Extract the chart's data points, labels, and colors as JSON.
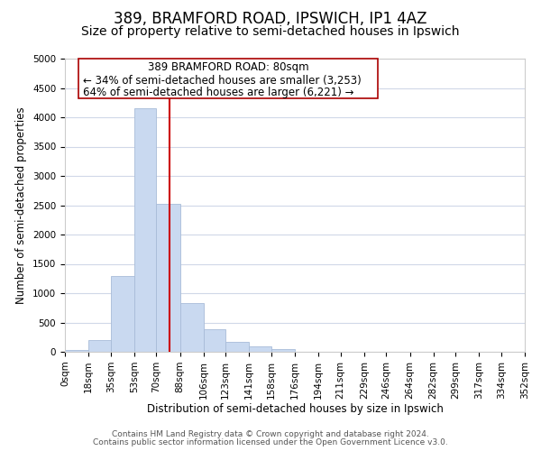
{
  "title": "389, BRAMFORD ROAD, IPSWICH, IP1 4AZ",
  "subtitle": "Size of property relative to semi-detached houses in Ipswich",
  "xlabel": "Distribution of semi-detached houses by size in Ipswich",
  "ylabel": "Number of semi-detached properties",
  "annotation_line1": "389 BRAMFORD ROAD: 80sqm",
  "annotation_line2": "← 34% of semi-detached houses are smaller (3,253)",
  "annotation_line3": "64% of semi-detached houses are larger (6,221) →",
  "footer_line1": "Contains HM Land Registry data © Crown copyright and database right 2024.",
  "footer_line2": "Contains public sector information licensed under the Open Government Licence v3.0.",
  "bin_edges": [
    0,
    18,
    35,
    53,
    70,
    88,
    106,
    123,
    141,
    158,
    176,
    194,
    211,
    229,
    246,
    264,
    282,
    299,
    317,
    334,
    352
  ],
  "bar_heights": [
    30,
    200,
    1300,
    4150,
    2530,
    830,
    380,
    170,
    90,
    50,
    0,
    0,
    0,
    0,
    0,
    0,
    0,
    0,
    0,
    0
  ],
  "bar_color": "#c9d9f0",
  "bar_edge_color": "#a8bcd8",
  "vline_x": 80,
  "vline_color": "#cc0000",
  "ylim": [
    0,
    5000
  ],
  "yticks": [
    0,
    500,
    1000,
    1500,
    2000,
    2500,
    3000,
    3500,
    4000,
    4500,
    5000
  ],
  "grid_color": "#d0d8e8",
  "annotation_box_edge": "#aa0000",
  "title_fontsize": 12,
  "subtitle_fontsize": 10,
  "axis_label_fontsize": 8.5,
  "tick_fontsize": 7.5,
  "annotation_fontsize": 8.5,
  "footer_fontsize": 6.5
}
